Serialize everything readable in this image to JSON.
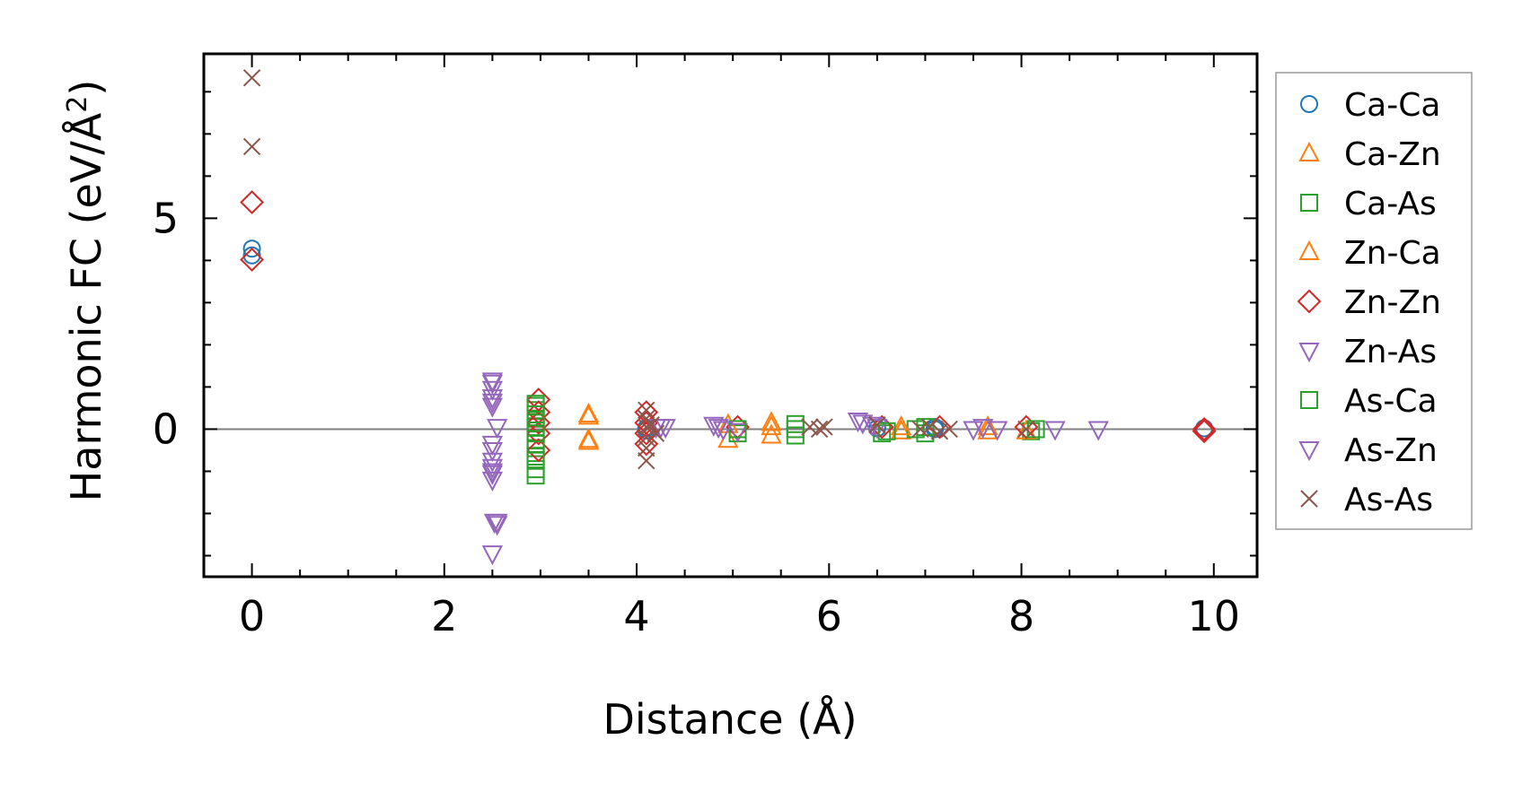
{
  "chart_data": {
    "type": "scatter",
    "xlabel": "Distance (Å)",
    "ylabel_main": "Harmonic FC (eV/Å",
    "ylabel_sup": "2",
    "ylabel_close": ")",
    "xlim": [
      -0.5,
      10.45
    ],
    "ylim": [
      -3.5,
      8.9
    ],
    "x_ticks": [
      0,
      2,
      4,
      6,
      8,
      10
    ],
    "x_tick_labels": [
      "0",
      "2",
      "4",
      "6",
      "8",
      "10"
    ],
    "x_minor_step": 0.5,
    "y_ticks": [
      0,
      5
    ],
    "y_tick_labels": [
      "0",
      "5"
    ],
    "y_minor_step": 1,
    "zero_line": true,
    "grid": false,
    "legend_position": "outside-right",
    "series": [
      {
        "name": "Ca-Ca",
        "marker": "circle",
        "color": "#1f77b4",
        "points": [
          [
            0,
            4.28
          ],
          [
            0,
            4.12
          ],
          [
            4.1,
            0.03
          ],
          [
            4.1,
            -0.03
          ],
          [
            6.5,
            0.02
          ],
          [
            7.1,
            0.05
          ],
          [
            7.1,
            0.0
          ],
          [
            9.9,
            0.02
          ]
        ]
      },
      {
        "name": "Ca-Zn",
        "marker": "triangle-up",
        "color": "#ff7f0e",
        "points": [
          [
            3.5,
            0.35
          ],
          [
            3.5,
            -0.3
          ],
          [
            4.95,
            -0.25
          ],
          [
            5.4,
            0.05
          ],
          [
            5.4,
            -0.15
          ],
          [
            6.75,
            -0.05
          ],
          [
            7.65,
            -0.05
          ]
        ]
      },
      {
        "name": "Ca-As",
        "marker": "square",
        "color": "#2ca02c",
        "points": [
          [
            2.95,
            0.55
          ],
          [
            2.95,
            0.45
          ],
          [
            2.95,
            0.25
          ],
          [
            2.95,
            0.05
          ],
          [
            2.95,
            -0.25
          ],
          [
            2.95,
            -0.45
          ],
          [
            2.95,
            -0.65
          ],
          [
            2.95,
            -0.95
          ],
          [
            2.95,
            -1.1
          ],
          [
            5.05,
            -0.1
          ],
          [
            5.65,
            0.12
          ],
          [
            5.65,
            -0.15
          ],
          [
            6.55,
            -0.1
          ],
          [
            6.9,
            0.0
          ],
          [
            7.0,
            0.05
          ],
          [
            8.1,
            -0.05
          ]
        ]
      },
      {
        "name": "Zn-Ca",
        "marker": "triangle-up",
        "color": "#ff7f0e",
        "points": [
          [
            3.5,
            0.3
          ],
          [
            3.5,
            -0.25
          ],
          [
            4.95,
            0.1
          ],
          [
            5.4,
            0.15
          ],
          [
            6.75,
            0.05
          ],
          [
            7.65,
            0.05
          ],
          [
            8.05,
            -0.05
          ]
        ]
      },
      {
        "name": "Zn-Zn",
        "marker": "diamond",
        "color": "#d62728",
        "points": [
          [
            0,
            5.38
          ],
          [
            0,
            4.02
          ],
          [
            2.98,
            0.7
          ],
          [
            2.98,
            0.4
          ],
          [
            2.98,
            0.15
          ],
          [
            2.98,
            -0.1
          ],
          [
            2.98,
            -0.5
          ],
          [
            4.1,
            0.4
          ],
          [
            4.1,
            0.15
          ],
          [
            4.1,
            -0.1
          ],
          [
            4.1,
            -0.35
          ],
          [
            5.05,
            0.05
          ],
          [
            6.55,
            0.05
          ],
          [
            7.15,
            0.05
          ],
          [
            8.05,
            0.05
          ],
          [
            9.9,
            0.0
          ],
          [
            9.9,
            -0.05
          ]
        ]
      },
      {
        "name": "Zn-As",
        "marker": "triangle-down",
        "color": "#9467bd",
        "points": [
          [
            2.5,
            1.15
          ],
          [
            2.5,
            0.95
          ],
          [
            2.5,
            0.75
          ],
          [
            2.5,
            0.55
          ],
          [
            2.5,
            -0.35
          ],
          [
            2.5,
            -0.75
          ],
          [
            2.5,
            -0.9
          ],
          [
            2.5,
            -1.05
          ],
          [
            2.5,
            -1.2
          ],
          [
            2.52,
            -2.2
          ],
          [
            2.55,
            -2.2
          ],
          [
            2.5,
            -2.95
          ],
          [
            2.55,
            0.05
          ],
          [
            4.2,
            0.05
          ],
          [
            4.3,
            0.05
          ],
          [
            4.85,
            0.05
          ],
          [
            5.05,
            -0.05
          ],
          [
            6.35,
            0.15
          ],
          [
            6.5,
            0.05
          ],
          [
            7.6,
            0.05
          ],
          [
            8.35,
            0.0
          ],
          [
            8.8,
            0.0
          ]
        ]
      },
      {
        "name": "As-Ca",
        "marker": "square",
        "color": "#2ca02c",
        "points": [
          [
            2.95,
            0.6
          ],
          [
            2.95,
            0.35
          ],
          [
            2.95,
            0.15
          ],
          [
            2.95,
            -0.1
          ],
          [
            2.95,
            -0.35
          ],
          [
            2.95,
            -0.75
          ],
          [
            5.05,
            0.0
          ],
          [
            5.65,
            0.0
          ],
          [
            6.6,
            -0.05
          ],
          [
            7.0,
            -0.1
          ],
          [
            8.15,
            0.0
          ]
        ]
      },
      {
        "name": "As-Zn",
        "marker": "triangle-down",
        "color": "#9467bd",
        "points": [
          [
            2.5,
            1.1
          ],
          [
            2.5,
            0.65
          ],
          [
            2.5,
            -0.5
          ],
          [
            2.5,
            -1.0
          ],
          [
            2.55,
            -2.25
          ],
          [
            4.25,
            0.05
          ],
          [
            4.8,
            0.1
          ],
          [
            4.9,
            0.0
          ],
          [
            6.3,
            0.2
          ],
          [
            6.45,
            0.1
          ],
          [
            7.5,
            0.0
          ],
          [
            7.75,
            0.0
          ]
        ]
      },
      {
        "name": "As-As",
        "marker": "x",
        "color": "#8c564b",
        "points": [
          [
            0,
            8.33
          ],
          [
            0,
            6.7
          ],
          [
            4.1,
            0.45
          ],
          [
            4.1,
            0.25
          ],
          [
            4.1,
            0.05
          ],
          [
            4.1,
            -0.2
          ],
          [
            4.1,
            -0.45
          ],
          [
            4.1,
            -0.75
          ],
          [
            4.15,
            0.1
          ],
          [
            4.2,
            -0.1
          ],
          [
            5.8,
            0.05
          ],
          [
            5.9,
            0.0
          ],
          [
            5.95,
            0.05
          ],
          [
            6.5,
            0.1
          ],
          [
            6.95,
            0.0
          ],
          [
            7.05,
            0.05
          ],
          [
            7.15,
            -0.05
          ],
          [
            7.25,
            0.0
          ],
          [
            8.05,
            0.0
          ]
        ]
      }
    ]
  }
}
